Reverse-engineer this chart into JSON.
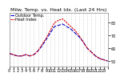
{
  "title": "Milw. Temp. vs. Heat Idx. (Last 24 Hrs)",
  "legend_temp": "Outdoor Temp.",
  "legend_heat": "Heat Index",
  "background_color": "#ffffff",
  "plot_bg_color": "#ffffff",
  "grid_color": "#bbbbbb",
  "line_color_temp": "#0000cc",
  "line_color_heat": "#dd0000",
  "x_values": [
    0,
    1,
    2,
    3,
    4,
    5,
    6,
    7,
    8,
    9,
    10,
    11,
    12,
    13,
    14,
    15,
    16,
    17,
    18,
    19,
    20,
    21,
    22,
    23,
    24
  ],
  "temp_values": [
    56,
    55,
    54,
    54,
    55,
    54,
    55,
    58,
    62,
    67,
    72,
    77,
    78,
    79,
    77,
    75,
    72,
    69,
    65,
    60,
    57,
    54,
    52,
    51,
    50
  ],
  "heat_values": [
    56,
    55,
    54,
    54,
    55,
    54,
    55,
    58,
    63,
    68,
    74,
    80,
    82,
    83,
    80,
    77,
    74,
    70,
    65,
    60,
    57,
    54,
    52,
    51,
    50
  ],
  "ylim": [
    46,
    88
  ],
  "ytick_values": [
    50,
    60,
    70,
    80
  ],
  "ytick_labels": [
    "50",
    "60",
    "70",
    "80"
  ],
  "xlim": [
    0,
    24
  ],
  "xtick_positions": [
    0,
    1,
    2,
    3,
    4,
    5,
    6,
    7,
    8,
    9,
    10,
    11,
    12,
    13,
    14,
    15,
    16,
    17,
    18,
    19,
    20,
    21,
    22,
    23,
    24
  ],
  "xtick_labels": [
    "0",
    "1",
    "2",
    "3",
    "4",
    "5",
    "6",
    "7",
    "8",
    "9",
    "10",
    "11",
    "12",
    "13",
    "14",
    "15",
    "16",
    "17",
    "18",
    "19",
    "20",
    "21",
    "22",
    "23",
    ""
  ],
  "title_fontsize": 4.5,
  "tick_fontsize": 3.5,
  "legend_fontsize": 3.5,
  "linewidth": 0.8
}
